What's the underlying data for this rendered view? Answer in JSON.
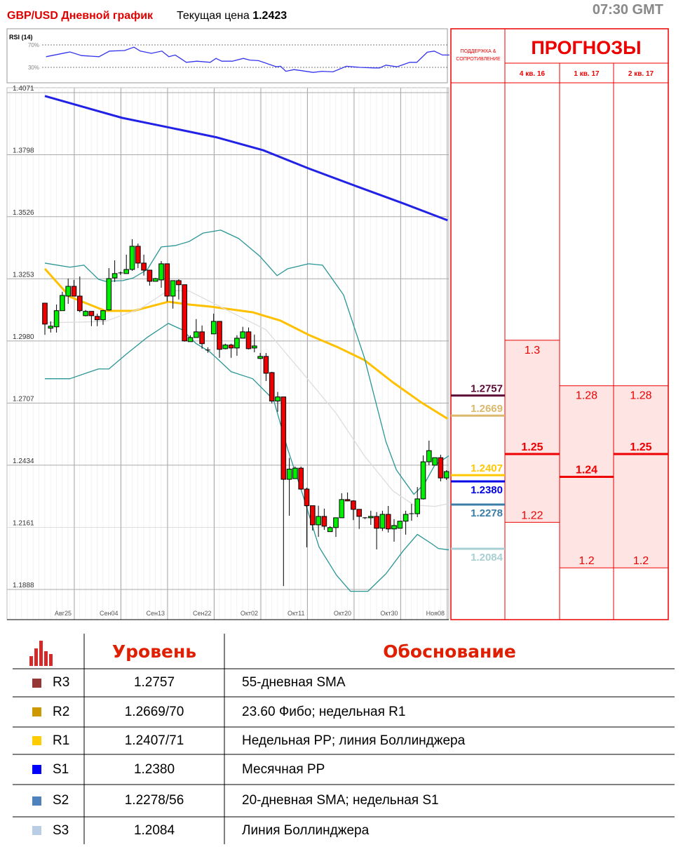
{
  "header": {
    "title": "GBP/USD Дневной график",
    "price_label": "Текущая цена",
    "price_value": "1.2423",
    "time": "07:30 GMT"
  },
  "chart_data": [
    {
      "type": "candlestick",
      "title": "GBP/USD Дневной график",
      "y_ticks": [
        "1.4071",
        "1.3798",
        "1.3526",
        "1.3253",
        "1.2980",
        "1.2707",
        "1.2434",
        "1.2161",
        "1.1888"
      ],
      "ylim": [
        1.1888,
        1.4071
      ],
      "x_ticks": [
        "Авг25",
        "Сен04",
        "Сен13",
        "Сен22",
        "Окт02",
        "Окт11",
        "Окт20",
        "Окт30",
        "Ноя08"
      ],
      "grid": true,
      "candles_ohlc": [
        [
          1.3146,
          1.3146,
          1.3007,
          1.3054
        ],
        [
          1.3036,
          1.3066,
          1.3017,
          1.3045
        ],
        [
          1.3042,
          1.314,
          1.3017,
          1.3113
        ],
        [
          1.3113,
          1.3196,
          1.3113,
          1.318
        ],
        [
          1.3177,
          1.3254,
          1.3143,
          1.322
        ],
        [
          1.322,
          1.3248,
          1.3177,
          1.3177
        ],
        [
          1.3177,
          1.3263,
          1.3106,
          1.3113
        ],
        [
          1.3091,
          1.3116,
          1.3088,
          1.311
        ],
        [
          1.311,
          1.311,
          1.3045,
          1.3091
        ],
        [
          1.3088,
          1.31,
          1.3045,
          1.3073
        ],
        [
          1.3073,
          1.3116,
          1.3051,
          1.3113
        ],
        [
          1.3116,
          1.33,
          1.3113,
          1.3254
        ],
        [
          1.3257,
          1.3334,
          1.3239,
          1.3276
        ],
        [
          1.3279,
          1.3285,
          1.327,
          1.3279
        ],
        [
          1.3276,
          1.3359,
          1.3276,
          1.3294
        ],
        [
          1.3294,
          1.3427,
          1.3288,
          1.3396
        ],
        [
          1.3396,
          1.3408,
          1.33,
          1.3322
        ],
        [
          1.3322,
          1.3359,
          1.3267,
          1.3291
        ],
        [
          1.3291,
          1.3291,
          1.3223,
          1.3242
        ],
        [
          1.3242,
          1.3257,
          1.3242,
          1.3254
        ],
        [
          1.3248,
          1.3331,
          1.3214,
          1.3319
        ],
        [
          1.3319,
          1.3319,
          1.3153,
          1.3177
        ],
        [
          1.3177,
          1.3245,
          1.3122,
          1.3245
        ],
        [
          1.3245,
          1.3251,
          1.3162,
          1.3227
        ],
        [
          1.3227,
          1.3227,
          1.2977,
          1.298
        ],
        [
          1.2977,
          1.3005,
          1.2977,
          1.2995
        ],
        [
          1.2995,
          1.3076,
          1.2995,
          1.302
        ],
        [
          1.302,
          1.3048,
          1.2946,
          1.2968
        ],
        [
          1.294,
          1.2952,
          1.2928,
          1.294
        ],
        [
          1.3011,
          1.31,
          1.3011,
          1.3066
        ],
        [
          1.3066,
          1.3066,
          1.2906,
          1.2943
        ],
        [
          1.2946,
          1.2968,
          1.2943,
          1.2962
        ],
        [
          1.2962,
          1.2968,
          1.2906,
          1.2949
        ],
        [
          1.2949,
          1.3005,
          1.2915,
          1.2992
        ],
        [
          1.2992,
          1.3042,
          1.2992,
          1.302
        ],
        [
          1.302,
          1.3039,
          1.2943,
          1.2946
        ],
        [
          1.2949,
          1.3008,
          1.293,
          1.2958
        ],
        [
          1.2903,
          1.2927,
          1.29,
          1.2912
        ],
        [
          1.2912,
          1.2927,
          1.2804,
          1.2838
        ],
        [
          1.2841,
          1.2844,
          1.2706,
          1.2716
        ],
        [
          1.2716,
          1.2756,
          1.2669,
          1.2734
        ],
        [
          1.2734,
          1.2734,
          1.1903,
          1.2372
        ],
        [
          1.2372,
          1.2466,
          1.2212,
          1.2417
        ],
        [
          1.2375,
          1.2428,
          1.2375,
          1.2421
        ],
        [
          1.2421,
          1.2428,
          1.2326,
          1.2329
        ],
        [
          1.2329,
          1.2335,
          1.2073,
          1.2256
        ],
        [
          1.2256,
          1.2256,
          1.2147,
          1.2172
        ],
        [
          1.2172,
          1.2256,
          1.2119,
          1.2209
        ],
        [
          1.2209,
          1.2243,
          1.215,
          1.2166
        ],
        [
          1.2142,
          1.2166,
          1.2142,
          1.216
        ],
        [
          1.216,
          1.2203,
          1.2119,
          1.2203
        ],
        [
          1.2203,
          1.2311,
          1.2203,
          1.2283
        ],
        [
          1.2283,
          1.2314,
          1.2277,
          1.2277
        ],
        [
          1.2277,
          1.228,
          1.2193,
          1.224
        ],
        [
          1.224,
          1.224,
          1.2154,
          1.2209
        ],
        [
          1.2203,
          1.2206,
          1.2197,
          1.2203
        ],
        [
          1.2203,
          1.2234,
          1.2172,
          1.2209
        ],
        [
          1.2209,
          1.2228,
          1.2064,
          1.2157
        ],
        [
          1.2157,
          1.2234,
          1.2145,
          1.2218
        ],
        [
          1.2218,
          1.2255,
          1.2138,
          1.2154
        ],
        [
          1.2154,
          1.2197,
          1.2098,
          1.2169
        ],
        [
          1.2157,
          1.2188,
          1.2157,
          1.2188
        ],
        [
          1.2188,
          1.2234,
          1.2129,
          1.2218
        ],
        [
          1.2221,
          1.2264,
          1.219,
          1.2221
        ],
        [
          1.2221,
          1.2338,
          1.2206,
          1.2286
        ],
        [
          1.2286,
          1.2477,
          1.2283,
          1.2449
        ],
        [
          1.2449,
          1.2542,
          1.2434,
          1.2498
        ],
        [
          1.2434,
          1.2467,
          1.2434,
          1.2467
        ],
        [
          1.2467,
          1.248,
          1.2363,
          1.2378
        ],
        [
          1.2378,
          1.2412,
          1.2369,
          1.2406
        ]
      ],
      "lines": [
        {
          "color": "#2222e6",
          "points": [
            [
              0,
              1.4056
            ],
            [
              13.3,
              1.396
            ],
            [
              21.5,
              1.3917
            ],
            [
              29.6,
              1.3874
            ],
            [
              37.5,
              1.3818
            ],
            [
              45.3,
              1.3738
            ],
            [
              53.7,
              1.3658
            ],
            [
              61.6,
              1.3584
            ],
            [
              69.2,
              1.351
            ]
          ]
        },
        {
          "color": "#ffc000",
          "points": [
            [
              0,
              1.3297
            ],
            [
              4.3,
              1.3174
            ],
            [
              10.4,
              1.3112
            ],
            [
              15.2,
              1.3112
            ],
            [
              21.2,
              1.3152
            ],
            [
              24.8,
              1.314
            ],
            [
              28.4,
              1.3131
            ],
            [
              35.7,
              1.3106
            ],
            [
              40.5,
              1.3069
            ],
            [
              45.3,
              1.3007
            ],
            [
              50.1,
              1.2955
            ],
            [
              54.9,
              1.2896
            ],
            [
              59.8,
              1.2798
            ],
            [
              64.6,
              1.2711
            ],
            [
              69.2,
              1.2638
            ]
          ]
        },
        {
          "color": "#2a9595",
          "points": [
            [
              0,
              1.3322
            ],
            [
              4.3,
              1.3304
            ],
            [
              6.7,
              1.3313
            ],
            [
              9.2,
              1.3251
            ],
            [
              10.4,
              1.3242
            ],
            [
              13.4,
              1.3245
            ],
            [
              15.2,
              1.3257
            ],
            [
              17.6,
              1.3294
            ],
            [
              20,
              1.3393
            ],
            [
              22.4,
              1.3399
            ],
            [
              24.8,
              1.3417
            ],
            [
              27.2,
              1.3454
            ],
            [
              30.2,
              1.3467
            ],
            [
              33.3,
              1.343
            ],
            [
              36.9,
              1.3353
            ],
            [
              39.9,
              1.3267
            ],
            [
              41.7,
              1.3297
            ],
            [
              45.3,
              1.3319
            ],
            [
              47.7,
              1.3313
            ],
            [
              51.3,
              1.3183
            ],
            [
              54.9,
              1.2906
            ],
            [
              58.6,
              1.2537
            ],
            [
              60.4,
              1.2413
            ],
            [
              63.4,
              1.2306
            ],
            [
              65.2,
              1.2352
            ],
            [
              67,
              1.2435
            ],
            [
              69.4,
              1.2475
            ]
          ]
        },
        {
          "color": "#2a9595",
          "points": [
            [
              0,
              1.2814
            ],
            [
              4.3,
              1.2814
            ],
            [
              9.2,
              1.2857
            ],
            [
              11,
              1.2857
            ],
            [
              14,
              1.2922
            ],
            [
              17.6,
              1.2996
            ],
            [
              21.2,
              1.3057
            ],
            [
              23.6,
              1.3029
            ],
            [
              26,
              1.2968
            ],
            [
              28.4,
              1.2931
            ],
            [
              32,
              1.2845
            ],
            [
              35.7,
              1.2814
            ],
            [
              39.3,
              1.2721
            ],
            [
              41.7,
              1.2506
            ],
            [
              44.1,
              1.2321
            ],
            [
              47.1,
              1.2075
            ],
            [
              50.1,
              1.1951
            ],
            [
              52.5,
              1.188
            ],
            [
              55.5,
              1.188
            ],
            [
              58.6,
              1.1957
            ],
            [
              61.6,
              1.2059
            ],
            [
              64,
              1.213
            ],
            [
              66.4,
              1.209
            ],
            [
              67.6,
              1.2068
            ],
            [
              69.4,
              1.2062
            ]
          ]
        },
        {
          "color": "#dddddd",
          "points": [
            [
              0,
              1.306
            ],
            [
              6.7,
              1.3063
            ],
            [
              10.4,
              1.3066
            ],
            [
              16.4,
              1.3122
            ],
            [
              21.2,
              1.3202
            ],
            [
              24.8,
              1.3199
            ],
            [
              30.8,
              1.3122
            ],
            [
              38,
              1.3029
            ],
            [
              44.1,
              1.2845
            ],
            [
              50.1,
              1.266
            ],
            [
              54.9,
              1.2475
            ],
            [
              59.8,
              1.2321
            ],
            [
              63.4,
              1.2259
            ],
            [
              67,
              1.2253
            ],
            [
              69.4,
              1.2265
            ]
          ]
        }
      ]
    },
    {
      "type": "line",
      "title": "RSI (14)",
      "y_ticks": [
        "70%",
        "30%"
      ],
      "points": [
        [
          0.2,
          49
        ],
        [
          3.6,
          56
        ],
        [
          4.3,
          57.5
        ],
        [
          6.3,
          51
        ],
        [
          9.3,
          49
        ],
        [
          11.1,
          59
        ],
        [
          13.7,
          60
        ],
        [
          15.3,
          66
        ],
        [
          16.4,
          59
        ],
        [
          18.3,
          55
        ],
        [
          20.1,
          59
        ],
        [
          21.3,
          49
        ],
        [
          22.4,
          52
        ],
        [
          24.3,
          39
        ],
        [
          26.1,
          41
        ],
        [
          28.4,
          39
        ],
        [
          29.4,
          46
        ],
        [
          30.4,
          41
        ],
        [
          32.2,
          41
        ],
        [
          34.1,
          46
        ],
        [
          35.2,
          43
        ],
        [
          36.7,
          42
        ],
        [
          39.8,
          31
        ],
        [
          40.5,
          32
        ],
        [
          41.4,
          23
        ],
        [
          42.8,
          26
        ],
        [
          44.2,
          24
        ],
        [
          46.1,
          21
        ],
        [
          47.6,
          23
        ],
        [
          49.5,
          22
        ],
        [
          51.8,
          32
        ],
        [
          54.1,
          30
        ],
        [
          56.6,
          29
        ],
        [
          57.5,
          29
        ],
        [
          58.6,
          34
        ],
        [
          60.5,
          31
        ],
        [
          62.7,
          39
        ],
        [
          63.9,
          39
        ],
        [
          65.7,
          57
        ],
        [
          66.9,
          59
        ],
        [
          68.3,
          52
        ],
        [
          69.5,
          52
        ]
      ],
      "color": "#3333ee"
    }
  ],
  "support_resistance": {
    "header": "ПОДДЕРЖКА & СОПРОТИВЛЕНИЕ",
    "levels": [
      {
        "label": "1.2757",
        "value": 1.2757,
        "color": "#5c0a36"
      },
      {
        "label": "1.2669",
        "value": 1.2669,
        "color": "#dbb86c"
      },
      {
        "label": "1.2407",
        "value": 1.2407,
        "color": "#ffc800"
      },
      {
        "label": "1.2380",
        "value": 1.238,
        "color": "#0000e6"
      },
      {
        "label": "1.2278",
        "value": 1.2278,
        "color": "#3a7ea8"
      },
      {
        "label": "1.2084",
        "value": 1.2084,
        "color": "#a8d0d4"
      }
    ]
  },
  "forecasts": {
    "title": "ПРОГНОЗЫ",
    "quarters": [
      {
        "label": "4 кв. 16",
        "high": "1.3",
        "mid": "1.25",
        "low": "1.22",
        "high_v": 1.3,
        "mid_v": 1.25,
        "low_v": 1.22
      },
      {
        "label": "1 кв. 17",
        "high": "1.28",
        "mid": "1.24",
        "low": "1.2",
        "high_v": 1.28,
        "mid_v": 1.24,
        "low_v": 1.2
      },
      {
        "label": "2 кв. 17",
        "high": "1.28",
        "mid": "1.25",
        "low": "1.2",
        "high_v": 1.28,
        "mid_v": 1.25,
        "low_v": 1.2
      }
    ]
  },
  "table": {
    "icon": "bar-chart-icon",
    "col_level": "Уровень",
    "col_reason": "Обоснование",
    "rows": [
      {
        "name": "R3",
        "level": "1.2757",
        "reason": "55-дневная SMA",
        "color": "#953735"
      },
      {
        "name": "R2",
        "level": "1.2669/70",
        "reason": "23.60 Фибо; недельная R1",
        "color": "#cc9900"
      },
      {
        "name": "R1",
        "level": "1.2407/71",
        "reason": "Недельная  PP; линия Боллинджера",
        "color": "#ffcc00"
      },
      {
        "name": "S1",
        "level": "1.2380",
        "reason": "Месячная PP",
        "color": "#0000ff"
      },
      {
        "name": "S2",
        "level": "1.2278/56",
        "reason": "20-дневная SMA; недельная S1",
        "color": "#4f81bd"
      },
      {
        "name": "S3",
        "level": "1.2084",
        "reason": "Линия Боллинджера",
        "color": "#b9cde5"
      }
    ]
  }
}
